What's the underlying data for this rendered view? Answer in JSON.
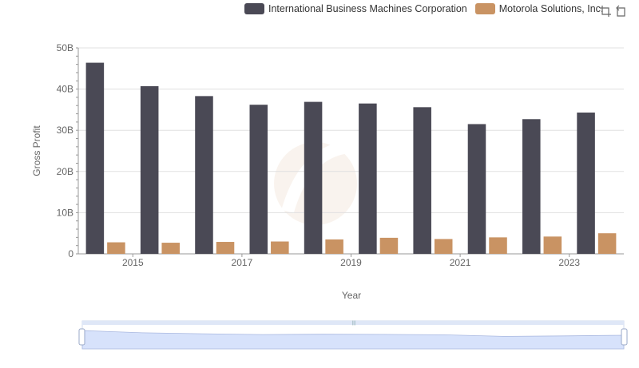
{
  "chart_data": {
    "type": "bar",
    "categories": [
      "2014",
      "2015",
      "2016",
      "2017",
      "2018",
      "2019",
      "2020",
      "2021",
      "2022",
      "2023"
    ],
    "tick_labels": [
      "2015",
      "2017",
      "2019",
      "2021",
      "2023"
    ],
    "series": [
      {
        "name": "International Business Machines Corporation",
        "color": "#4a4955",
        "values": [
          46.4,
          40.7,
          38.3,
          36.2,
          36.9,
          36.5,
          35.6,
          31.5,
          32.7,
          34.3
        ]
      },
      {
        "name": "Motorola Solutions, Inc.",
        "color": "#c99363",
        "values": [
          2.8,
          2.7,
          2.9,
          3.0,
          3.5,
          3.9,
          3.6,
          4.0,
          4.2,
          5.0
        ]
      }
    ],
    "y_ticks": [
      "0",
      "10B",
      "20B",
      "30B",
      "40B",
      "50B"
    ],
    "ylim": [
      0,
      50
    ],
    "xlabel": "Year",
    "ylabel": "Gross Profit",
    "grid": true,
    "legend_position": "top-right",
    "data_zoom": {
      "start_percent": 0,
      "end_percent": 100
    }
  },
  "toolbox": {
    "icons": [
      "zoom-icon",
      "restore-icon"
    ]
  }
}
